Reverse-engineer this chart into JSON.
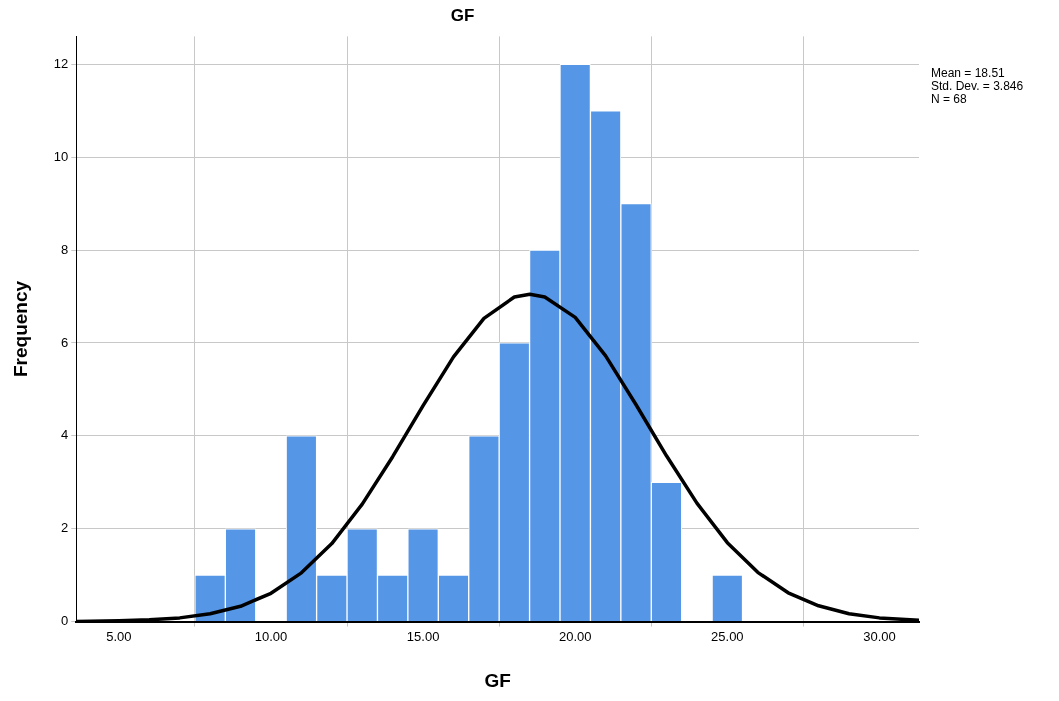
{
  "chart_data": {
    "type": "histogram",
    "title": "GF",
    "xlabel": "GF",
    "ylabel": "Frequency",
    "bins": [
      7.5,
      8.5,
      9.5,
      10.5,
      11.5,
      12.5,
      13.5,
      14.5,
      15.5,
      16.5,
      17.5,
      18.5,
      19.5,
      20.5,
      21.5,
      22.5,
      23.5,
      24.5,
      25.5
    ],
    "values": [
      1,
      2,
      0,
      4,
      1,
      2,
      1,
      2,
      1,
      4,
      6,
      8,
      12,
      11,
      9,
      3,
      0,
      1
    ],
    "color": "#5596e6",
    "series": [
      {
        "type": "line",
        "color": "#000000",
        "x": [
          3.6,
          5,
          6,
          7,
          8,
          9,
          10,
          11,
          12,
          13,
          14,
          15,
          16,
          17,
          18,
          18.51,
          19,
          20,
          21,
          22,
          23,
          24,
          25,
          26,
          27,
          28,
          29,
          30,
          31.3
        ],
        "values": [
          0.0,
          0.02,
          0.04,
          0.08,
          0.17,
          0.33,
          0.61,
          1.05,
          1.68,
          2.53,
          3.55,
          4.65,
          5.7,
          6.53,
          6.99,
          7.05,
          6.99,
          6.55,
          5.72,
          4.67,
          3.57,
          2.55,
          1.7,
          1.06,
          0.62,
          0.34,
          0.17,
          0.08,
          0.03
        ]
      }
    ],
    "xlim": [
      3.6,
      31.3
    ],
    "xticks": [
      {
        "value": 5,
        "label": "5.00"
      },
      {
        "value": 10,
        "label": "10.00"
      },
      {
        "value": 15,
        "label": "15.00"
      },
      {
        "value": 20,
        "label": "20.00"
      },
      {
        "value": 25,
        "label": "25.00"
      },
      {
        "value": 30,
        "label": "30.00"
      }
    ],
    "ylim": [
      0,
      12.6
    ],
    "yticks": [
      0,
      2,
      4,
      6,
      8,
      10,
      12
    ],
    "grid": true,
    "annotations": [
      "Mean = 18.51",
      "Std. Dev. = 3.846",
      "N = 68"
    ]
  }
}
